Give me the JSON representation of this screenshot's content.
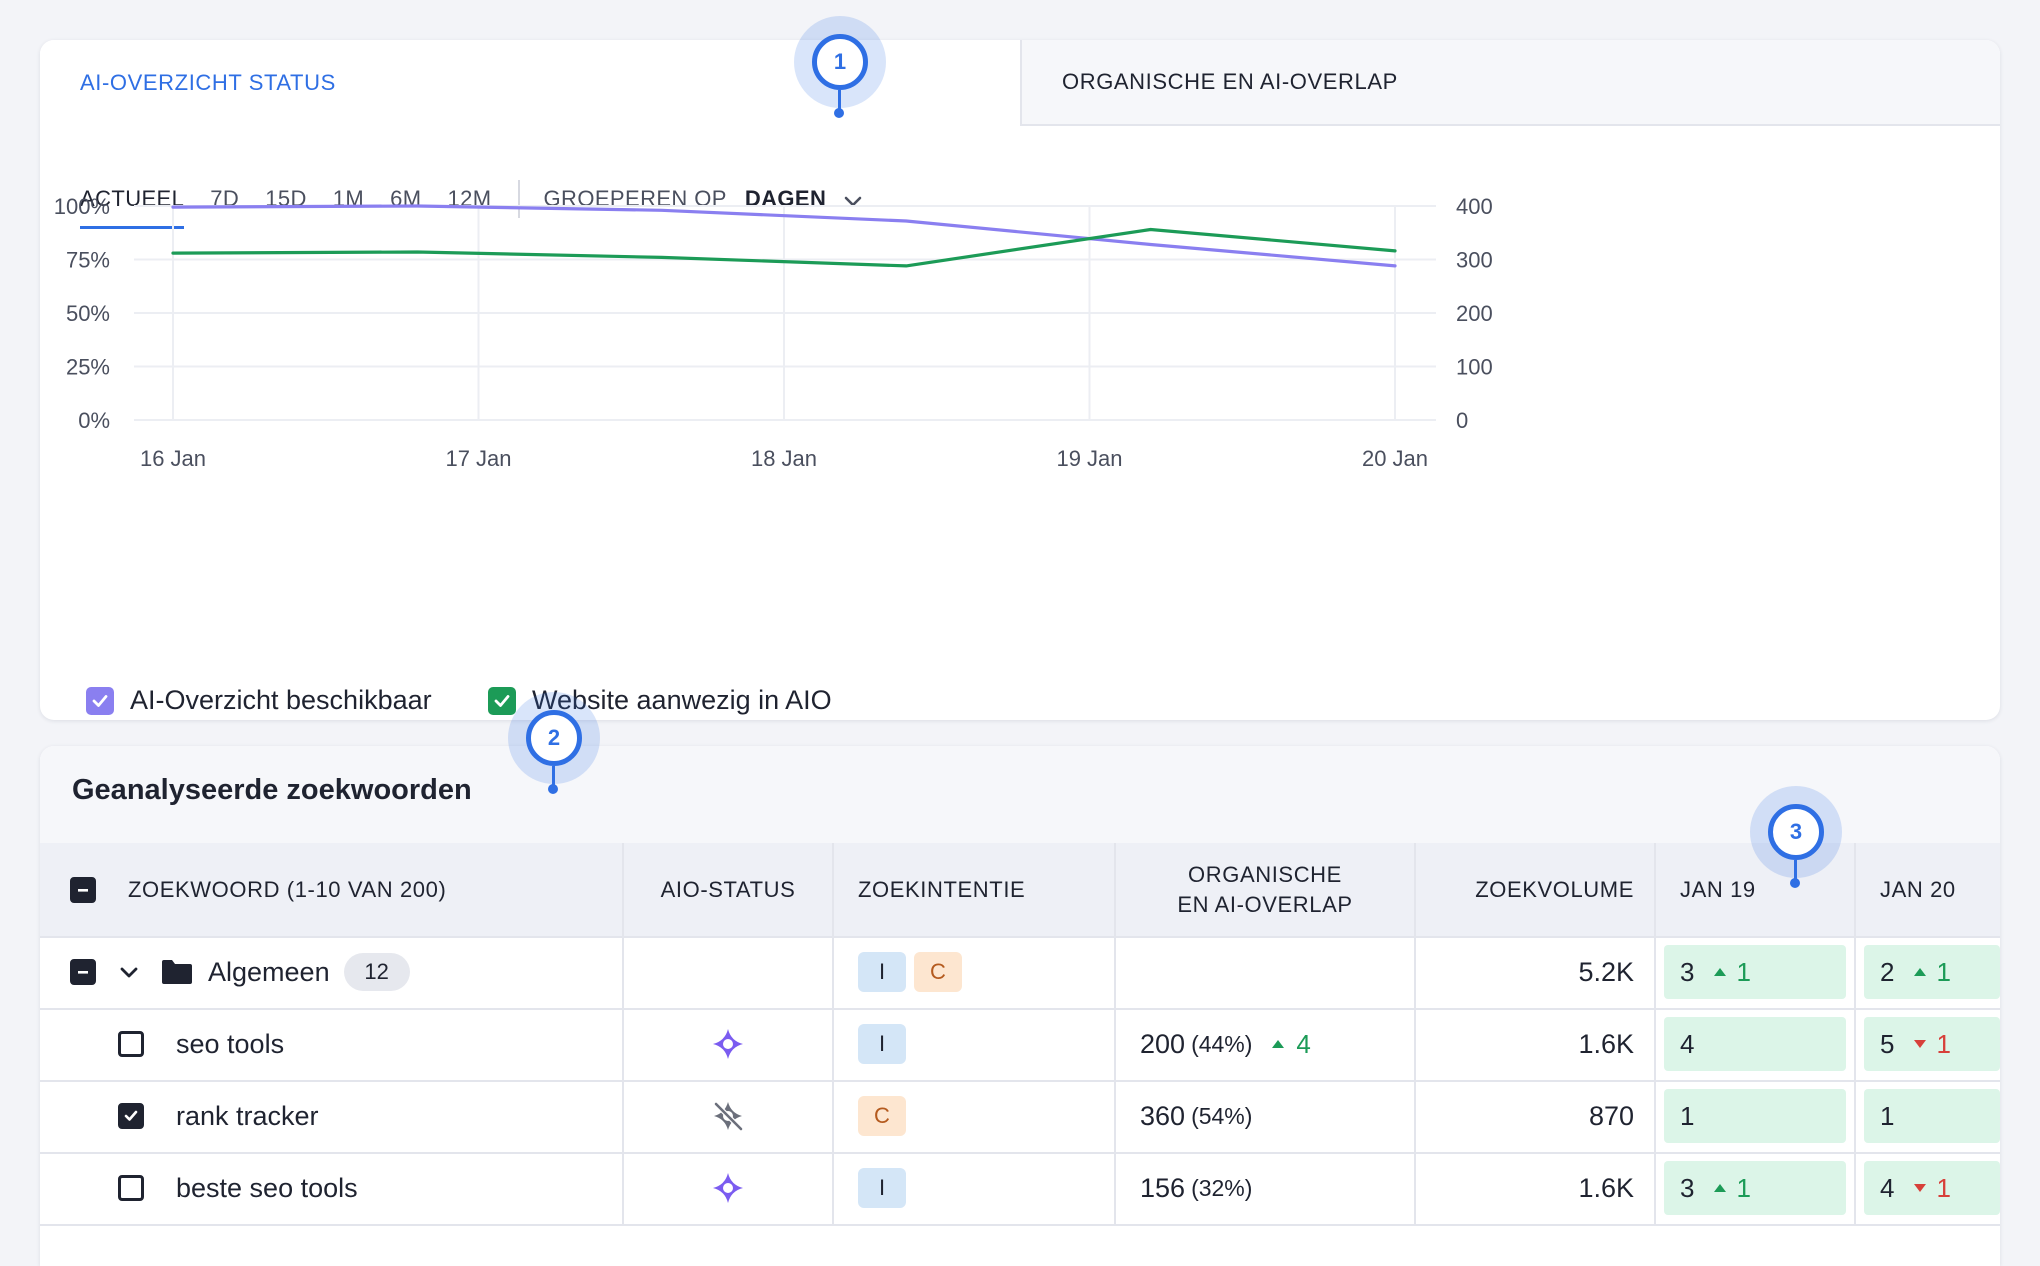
{
  "tabs": {
    "status": "AI-OVERZICHT STATUS",
    "overlap": "ORGANISCHE EN AI-OVERLAP"
  },
  "ranges": [
    "ACTUEEL",
    "7D",
    "15D",
    "1M",
    "6M",
    "12M"
  ],
  "active_range": "ACTUEEL",
  "group_by": {
    "label": "GROEPEREN OP",
    "value": "DAGEN"
  },
  "chart_data": {
    "type": "line",
    "x": [
      "16 Jan",
      "17 Jan",
      "18 Jan",
      "19 Jan",
      "20 Jan"
    ],
    "y_left": {
      "ticks": [
        "100%",
        "75%",
        "50%",
        "25%",
        "0%"
      ],
      "range": [
        0,
        100
      ]
    },
    "y_right": {
      "ticks": [
        "400",
        "300",
        "200",
        "100",
        "0"
      ],
      "range": [
        0,
        400
      ]
    },
    "series": [
      {
        "name": "AI-Overzicht beschikbaar",
        "color": "#8a7ff0",
        "axis": "left",
        "points": [
          [
            0,
            99.5
          ],
          [
            0.8,
            100
          ],
          [
            1.6,
            98
          ],
          [
            2.4,
            93
          ],
          [
            3.2,
            82
          ],
          [
            4,
            72
          ]
        ]
      },
      {
        "name": "Website aanwezig in AIO",
        "color": "#1c9b57",
        "axis": "left",
        "points": [
          [
            0,
            78
          ],
          [
            0.8,
            78.5
          ],
          [
            1.6,
            76
          ],
          [
            2.4,
            72
          ],
          [
            3.2,
            89
          ],
          [
            4,
            79
          ]
        ]
      }
    ],
    "grid": true,
    "legend": "bottom-left"
  },
  "legend": [
    {
      "label": "AI-Overzicht beschikbaar",
      "color": "#8a7ff0"
    },
    {
      "label": "Website aanwezig in AIO",
      "color": "#1c9b57"
    }
  ],
  "markers": [
    "1",
    "2",
    "3"
  ],
  "table": {
    "title": "Geanalyseerde zoekwoorden",
    "headers": {
      "keyword": "ZOEKWOORD (1-10 VAN 200)",
      "aio": "AIO-STATUS",
      "intent": "ZOEKINTENTIE",
      "overlap_1": "ORGANISCHE",
      "overlap_2": "EN AI-OVERLAP",
      "volume": "ZOEKVOLUME",
      "jan19": "JAN 19",
      "jan20": "JAN 20"
    },
    "group": {
      "name": "Algemeen",
      "count": "12",
      "intents": [
        "I",
        "C"
      ],
      "volume": "5.2K",
      "jan19": "3",
      "jan19_delta": "1",
      "jan20": "2",
      "jan20_delta": "1"
    },
    "rows": [
      {
        "keyword": "seo tools",
        "checked": false,
        "aio_icon": "ai-sparkle-icon",
        "intent": "I",
        "overlap": "200",
        "overlap_pct": "(44%)",
        "overlap_delta": "4",
        "volume": "1.6K",
        "jan19": "4",
        "jan20": "5",
        "jan20_delta": "1"
      },
      {
        "keyword": "rank tracker",
        "checked": true,
        "aio_icon": "ai-unavailable-icon",
        "intent": "C",
        "overlap": "360",
        "overlap_pct": "(54%)",
        "volume": "870",
        "jan19": "1",
        "jan20": "1"
      },
      {
        "keyword": "beste seo tools",
        "checked": false,
        "aio_icon": "ai-sparkle-icon",
        "intent": "I",
        "overlap": "156",
        "overlap_pct": "(32%)",
        "volume": "1.6K",
        "jan19": "3",
        "jan19_delta": "1",
        "jan20": "4",
        "jan20_delta": "1"
      }
    ]
  }
}
